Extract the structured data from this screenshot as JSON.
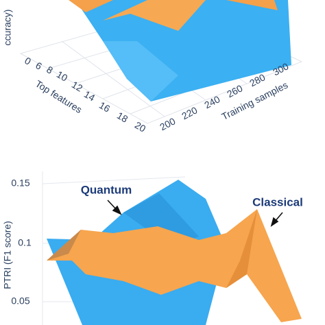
{
  "top_panel": {
    "z_axis_label": "ccuracy)",
    "features_axis": {
      "title": "Top features",
      "ticks": [
        0,
        6,
        8,
        10,
        12,
        14,
        16,
        18,
        20
      ]
    },
    "samples_axis": {
      "title": "Training samples",
      "ticks": [
        200,
        220,
        240,
        260,
        280,
        300
      ]
    }
  },
  "bottom_panel": {
    "z_axis_label": "PTRI (F1 score)",
    "z_ticks": [
      0.15,
      0.1,
      0.05
    ],
    "annotations": [
      "Quantum",
      "Classical"
    ]
  }
}
